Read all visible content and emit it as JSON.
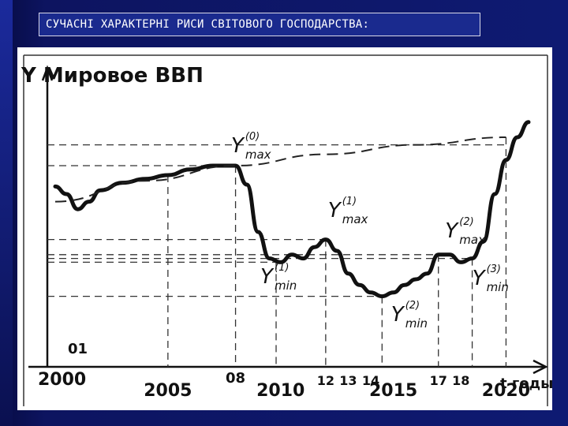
{
  "slide": {
    "title": "СУЧАСНІ ХАРАКТЕРНІ РИСИ СВІТОВОГО ГОСПОДАРСТВА:"
  },
  "colors": {
    "background": "#0d1460",
    "title_bar": "#1a2a8e",
    "ink": "#111111"
  },
  "chart_data": {
    "type": "line",
    "ylabel": "Y Мировое ВВП",
    "xlabel": "t годы",
    "x_ticks": [
      "2000",
      "01",
      "2005",
      "08",
      "2010",
      "12",
      "13",
      "14",
      "2015",
      "17",
      "18",
      "2020"
    ],
    "annotations": [
      {
        "label": "Y",
        "sub": "max",
        "sup": "(0)"
      },
      {
        "label": "Y",
        "sub": "max",
        "sup": "(1)"
      },
      {
        "label": "Y",
        "sub": "max",
        "sup": "(2)"
      },
      {
        "label": "Y",
        "sub": "min",
        "sup": "(1)"
      },
      {
        "label": "Y",
        "sub": "min",
        "sup": "(2)"
      },
      {
        "label": "Y",
        "sub": "min",
        "sup": "(3)"
      }
    ],
    "series": [
      {
        "x": [
          2000,
          2000.5,
          2001,
          2001.5,
          2002,
          2003,
          2004,
          2005,
          2006,
          2007,
          2008,
          2008.5,
          2009,
          2009.5,
          2010,
          2010.5,
          2011,
          2011.5,
          2012,
          2012.5,
          2013,
          2013.5,
          2014,
          2014.5,
          2015,
          2015.5,
          2016,
          2016.5,
          2017,
          2017.5,
          2018,
          2018.5,
          2019,
          2019.5,
          2020,
          2020.5,
          2021
        ],
        "y": [
          64,
          60,
          52,
          56,
          62,
          66,
          68,
          70,
          73,
          75,
          75,
          65,
          40,
          26,
          24,
          28,
          26,
          32,
          36,
          30,
          18,
          12,
          8,
          6,
          8,
          12,
          15,
          18,
          28,
          28,
          24,
          26,
          35,
          60,
          78,
          90,
          98
        ]
      },
      {
        "x": [
          2000,
          2004,
          2008,
          2012,
          2016,
          2020
        ],
        "y": [
          56,
          67,
          75,
          81,
          86,
          90
        ]
      }
    ]
  }
}
